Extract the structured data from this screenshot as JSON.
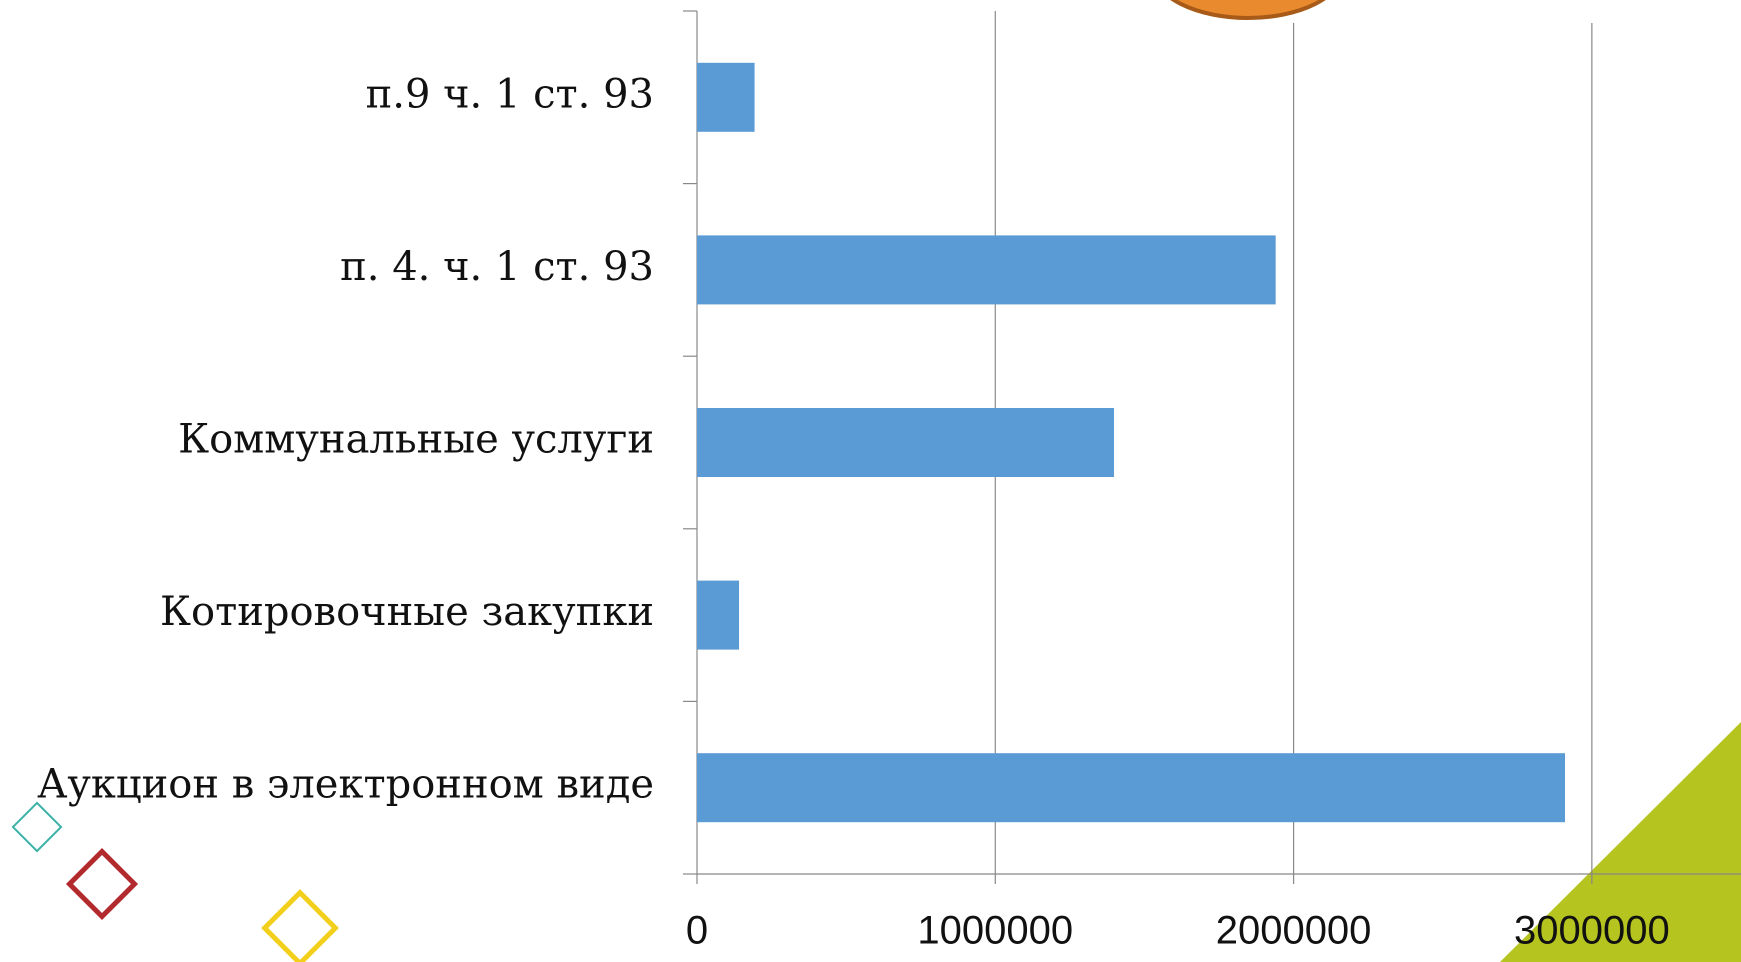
{
  "chart_data": {
    "type": "bar",
    "orientation": "horizontal",
    "categories": [
      "п.9 ч. 1 ст. 93",
      "п. 4. ч. 1 ст. 93",
      "Коммунальные услуги",
      "Котировочные закупки",
      "Аукцион в электронном виде"
    ],
    "values": [
      193000,
      1940000,
      1398000,
      141000,
      2910000
    ],
    "color": "#5b9bd5",
    "xlim": [
      0,
      3500000
    ],
    "xticks": [
      0,
      1000000,
      2000000,
      3000000
    ],
    "grid": true
  }
}
